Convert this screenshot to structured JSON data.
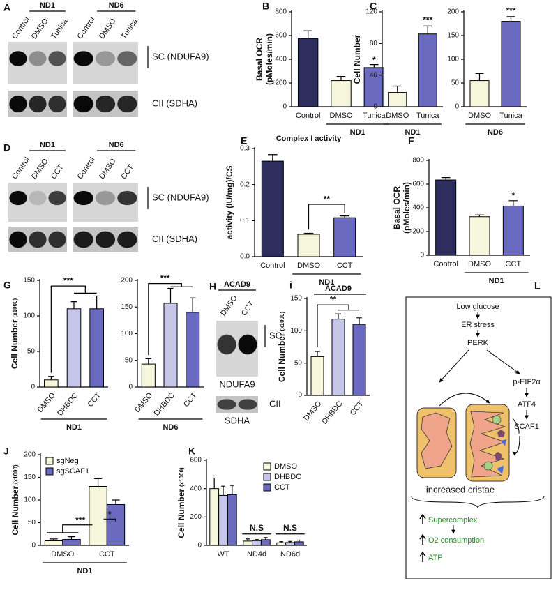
{
  "chart_data": [
    {
      "panel": "B",
      "type": "bar",
      "ylabel": "Basal OCR",
      "ylabel_unit": "(pMoles/min)",
      "categories": [
        "Control",
        "DMSO",
        "Tunica"
      ],
      "values": [
        575,
        220,
        330
      ],
      "errors": [
        65,
        35,
        25
      ],
      "colors": [
        "#2d2d5e",
        "#f6f6dc",
        "#6a6ac0"
      ],
      "ylim": [
        0,
        800
      ],
      "yticks": [
        0,
        200,
        400,
        600,
        800
      ],
      "group": "ND1",
      "significance": [
        "*"
      ]
    },
    {
      "panel": "C",
      "type": "bar",
      "ylabel": "Cell Number",
      "categories": [
        "DMSO",
        "Tunica"
      ],
      "values": [
        18,
        92
      ],
      "errors": [
        8,
        10
      ],
      "colors": [
        "#f6f6dc",
        "#6a6ac0"
      ],
      "ylim": [
        0,
        120
      ],
      "yticks": [
        0,
        40,
        80,
        120
      ],
      "group": "ND1",
      "significance": [
        "***"
      ]
    },
    {
      "type": "bar",
      "categories": [
        "DMSO",
        "Tunica"
      ],
      "values": [
        55,
        180
      ],
      "errors": [
        15,
        10
      ],
      "colors": [
        "#f6f6dc",
        "#6a6ac0"
      ],
      "ylim": [
        0,
        200
      ],
      "yticks": [
        0,
        50,
        100,
        150,
        200
      ],
      "group": "ND6",
      "significance": [
        "***"
      ]
    },
    {
      "panel": "E",
      "type": "bar",
      "title": "Complex I activity",
      "ylabel": "activity (IU/mg)/CS",
      "categories": [
        "Control",
        "DMSO",
        "CCT"
      ],
      "values": [
        0.265,
        0.062,
        0.108
      ],
      "errors": [
        0.018,
        0.003,
        0.005
      ],
      "colors": [
        "#2d2d5e",
        "#f6f6dc",
        "#6a6ac0"
      ],
      "ylim": [
        0,
        0.3
      ],
      "yticks": [
        {
          "value": 0,
          "label": "0.0"
        },
        0.1,
        0.2,
        0.3
      ],
      "group": "ND1",
      "significance": [
        "**"
      ]
    },
    {
      "panel": "F",
      "type": "bar",
      "ylabel": "Basal OCR",
      "ylabel_unit": "(pMoles/min)",
      "categories": [
        "Control",
        "DMSO",
        "CCT"
      ],
      "values": [
        635,
        325,
        415
      ],
      "errors": [
        20,
        15,
        45
      ],
      "colors": [
        "#2d2d5e",
        "#f6f6dc",
        "#6a6ac0"
      ],
      "ylim": [
        0,
        800
      ],
      "yticks": [
        0,
        200,
        400,
        600,
        800
      ],
      "group": "ND1",
      "significance": [
        "*"
      ]
    },
    {
      "panel": "G",
      "type": "bar",
      "ylabel": "Cell Number",
      "ylabel_unit": "(x1000)",
      "categories": [
        "DMSO",
        "DHBDC",
        "CCT"
      ],
      "values": [
        10,
        110,
        110
      ],
      "errors": [
        5,
        10,
        18
      ],
      "colors": [
        "#f6f6dc",
        "#c6c6e8",
        "#6a6ac0"
      ],
      "ylim": [
        0,
        150
      ],
      "yticks": [
        0,
        50,
        100,
        150
      ],
      "group": "ND1",
      "significance": [
        "***"
      ]
    },
    {
      "type": "bar",
      "categories": [
        "DMSO",
        "DHBDC",
        "CCT"
      ],
      "values": [
        43,
        157,
        140
      ],
      "errors": [
        10,
        28,
        27
      ],
      "colors": [
        "#f6f6dc",
        "#c6c6e8",
        "#6a6ac0"
      ],
      "ylim": [
        0,
        200
      ],
      "yticks": [
        0,
        50,
        100,
        150,
        200
      ],
      "group": "ND6",
      "significance": [
        "***"
      ]
    },
    {
      "panel": "i",
      "type": "bar",
      "title": "ACAD9",
      "ylabel": "Cell Number",
      "ylabel_unit": "(x1000)",
      "categories": [
        "DMSO",
        "DHBDC",
        "CCT"
      ],
      "values": [
        60,
        118,
        110
      ],
      "errors": [
        8,
        8,
        10
      ],
      "colors": [
        "#f6f6dc",
        "#c6c6e8",
        "#6a6ac0"
      ],
      "ylim": [
        0,
        150
      ],
      "yticks": [
        0,
        50,
        100,
        150
      ],
      "significance": [
        "**"
      ]
    },
    {
      "panel": "J",
      "type": "grouped_bar",
      "ylabel": "Cell Number",
      "ylabel_unit": "(x1000)",
      "categories": [
        "DMSO",
        "CCT"
      ],
      "series": [
        {
          "name": "sgNeg",
          "color": "#f6f6dc",
          "values": [
            10,
            130
          ],
          "errors": [
            4,
            17
          ]
        },
        {
          "name": "sgSCAF1",
          "color": "#6a6ac0",
          "values": [
            13,
            90
          ],
          "errors": [
            6,
            10
          ]
        }
      ],
      "ylim": [
        0,
        200
      ],
      "yticks": [
        0,
        50,
        100,
        150,
        200
      ],
      "group": "ND1",
      "legend": "upper left",
      "significance": [
        "***",
        "*"
      ]
    },
    {
      "panel": "K",
      "type": "grouped_bar",
      "ylabel": "Cell Number",
      "ylabel_unit": "(x1000)",
      "categories": [
        "WT",
        "ND4d",
        "ND6d"
      ],
      "series": [
        {
          "name": "DMSO",
          "color": "#f6f6dc",
          "values": [
            400,
            30,
            18
          ],
          "errors": [
            75,
            15,
            8
          ]
        },
        {
          "name": "DHBDC",
          "color": "#c6c6e8",
          "values": [
            352,
            33,
            20
          ],
          "errors": [
            65,
            8,
            8
          ]
        },
        {
          "name": "CCT",
          "color": "#6a6ac0",
          "values": [
            357,
            40,
            25
          ],
          "errors": [
            65,
            15,
            12
          ]
        }
      ],
      "ylim": [
        0,
        600
      ],
      "yticks": [
        0,
        200,
        400,
        600
      ],
      "legend": "upper right",
      "significance": [
        "N.S",
        "N.S"
      ]
    }
  ],
  "blots": [
    {
      "panel": "A",
      "groups": [
        {
          "name": "ND1",
          "lanes": [
            "Control",
            "DMSO",
            "Tunica"
          ]
        },
        {
          "name": "ND6",
          "lanes": [
            "Control",
            "DMSO",
            "Tunica"
          ]
        }
      ],
      "bands": [
        "SC (NDUFA9)",
        "CII (SDHA)"
      ]
    },
    {
      "panel": "D",
      "groups": [
        {
          "name": "ND1",
          "lanes": [
            "Control",
            "DMSO",
            "CCT"
          ]
        },
        {
          "name": "ND6",
          "lanes": [
            "Control",
            "DMSO",
            "CCT"
          ]
        }
      ],
      "bands": [
        "SC (NDUFA9)",
        "CII (SDHA)"
      ]
    },
    {
      "panel": "H",
      "groups": [
        {
          "name": "ACAD9",
          "lanes": [
            "DMSO",
            "CCT"
          ]
        }
      ],
      "bands": [
        "SC",
        "CII"
      ],
      "band_names": [
        "NDUFA9",
        "SDHA"
      ]
    }
  ],
  "diagram": {
    "panel": "L",
    "steps": [
      "Low glucose",
      "ER stress",
      "PERK"
    ],
    "branch": [
      "p-EIF2α",
      "ATF4",
      "SCAF1"
    ],
    "cristae_label": "increased cristae",
    "outcomes": [
      "Supercomplex",
      "O2 consumption",
      "ATP"
    ]
  }
}
